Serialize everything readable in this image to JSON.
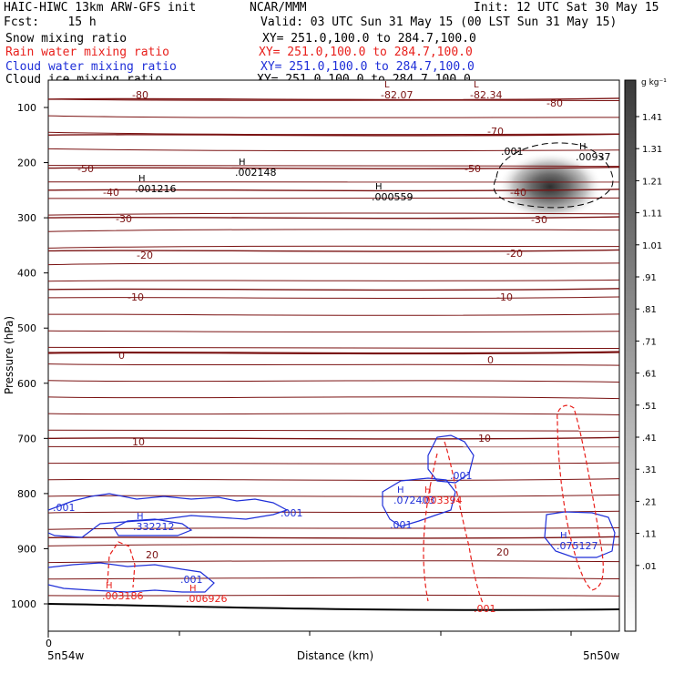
{
  "header": {
    "line1_left": "HAIC-HIWC 13km ARW-GFS init",
    "line1_mid": "NCAR/MMM",
    "line1_right": "Init: 12 UTC Sat 30 May 15",
    "line2_left": "Fcst:    15 h",
    "line2_right": "Valid: 03 UTC Sun 31 May 15 (00 LST Sun 31 May 15)",
    "fields": [
      {
        "label": "Snow mixing ratio",
        "xy": "XY= 251.0,100.0 to 284.7,100.0",
        "color": "#000000"
      },
      {
        "label": "Rain water mixing ratio",
        "xy": "XY= 251.0,100.0 to 284.7,100.0",
        "color": "#e8201c"
      },
      {
        "label": "Cloud water mixing ratio",
        "xy": "XY= 251.0,100.0 to 284.7,100.0",
        "color": "#1f2fd8"
      },
      {
        "label": "Cloud ice mixing ratio",
        "xy": "XY= 251.0,100.0 to 284.7,100.0",
        "color": "#000000"
      }
    ]
  },
  "chart_data": {
    "type": "contour cross-section",
    "ylabel": "Pressure (hPa)",
    "xlabel": "Distance (km)",
    "x_start_label": "5n54w",
    "x_end_label": "5n50w",
    "x_zero_label": "0",
    "y_ticks": [
      100,
      200,
      300,
      400,
      500,
      600,
      700,
      800,
      900,
      1000
    ],
    "y_range": [
      50,
      1050
    ],
    "colorbar": {
      "units": "g kg⁻¹",
      "labels": [
        "1.41",
        "1.31",
        "1.21",
        "1.11",
        "1.01",
        ".91",
        ".81",
        ".71",
        ".61",
        ".51",
        ".41",
        ".31",
        ".21",
        ".11",
        ".01"
      ]
    },
    "temperature_contours": [
      {
        "label": "-80",
        "pressure": 85
      },
      {
        "label": "-70",
        "pressure": 150
      },
      {
        "label": "-50",
        "pressure": 210
      },
      {
        "label": "-40",
        "pressure": 250
      },
      {
        "label": "-30",
        "pressure": 300
      },
      {
        "label": "-20",
        "pressure": 360
      },
      {
        "label": "-10",
        "pressure": 430
      },
      {
        "label": "0",
        "pressure": 545
      },
      {
        "label": "10",
        "pressure": 700
      },
      {
        "label": "20",
        "pressure": 880
      }
    ],
    "extrema_labels": [
      {
        "mark": "L",
        "value": "-82.07"
      },
      {
        "mark": "L",
        "value": "-82.34"
      },
      {
        "mark": "H",
        "value": ".002148"
      },
      {
        "mark": "H",
        "value": ".001216"
      },
      {
        "mark": "H",
        "value": ".000559"
      },
      {
        "mark": "H",
        "value": ".00937"
      },
      {
        "mark": "H",
        "value": ".332212"
      },
      {
        "mark": "H",
        "value": ".072403"
      },
      {
        "mark": "H",
        "value": ".003394"
      },
      {
        "mark": "H",
        "value": ".075127"
      },
      {
        "mark": "H",
        "value": ".003186"
      },
      {
        "mark": "H",
        "value": ".006926"
      }
    ],
    "contour_value_labels": [
      ".001",
      ".001",
      ".001",
      ".001",
      ".001",
      ".001",
      ".001"
    ]
  }
}
